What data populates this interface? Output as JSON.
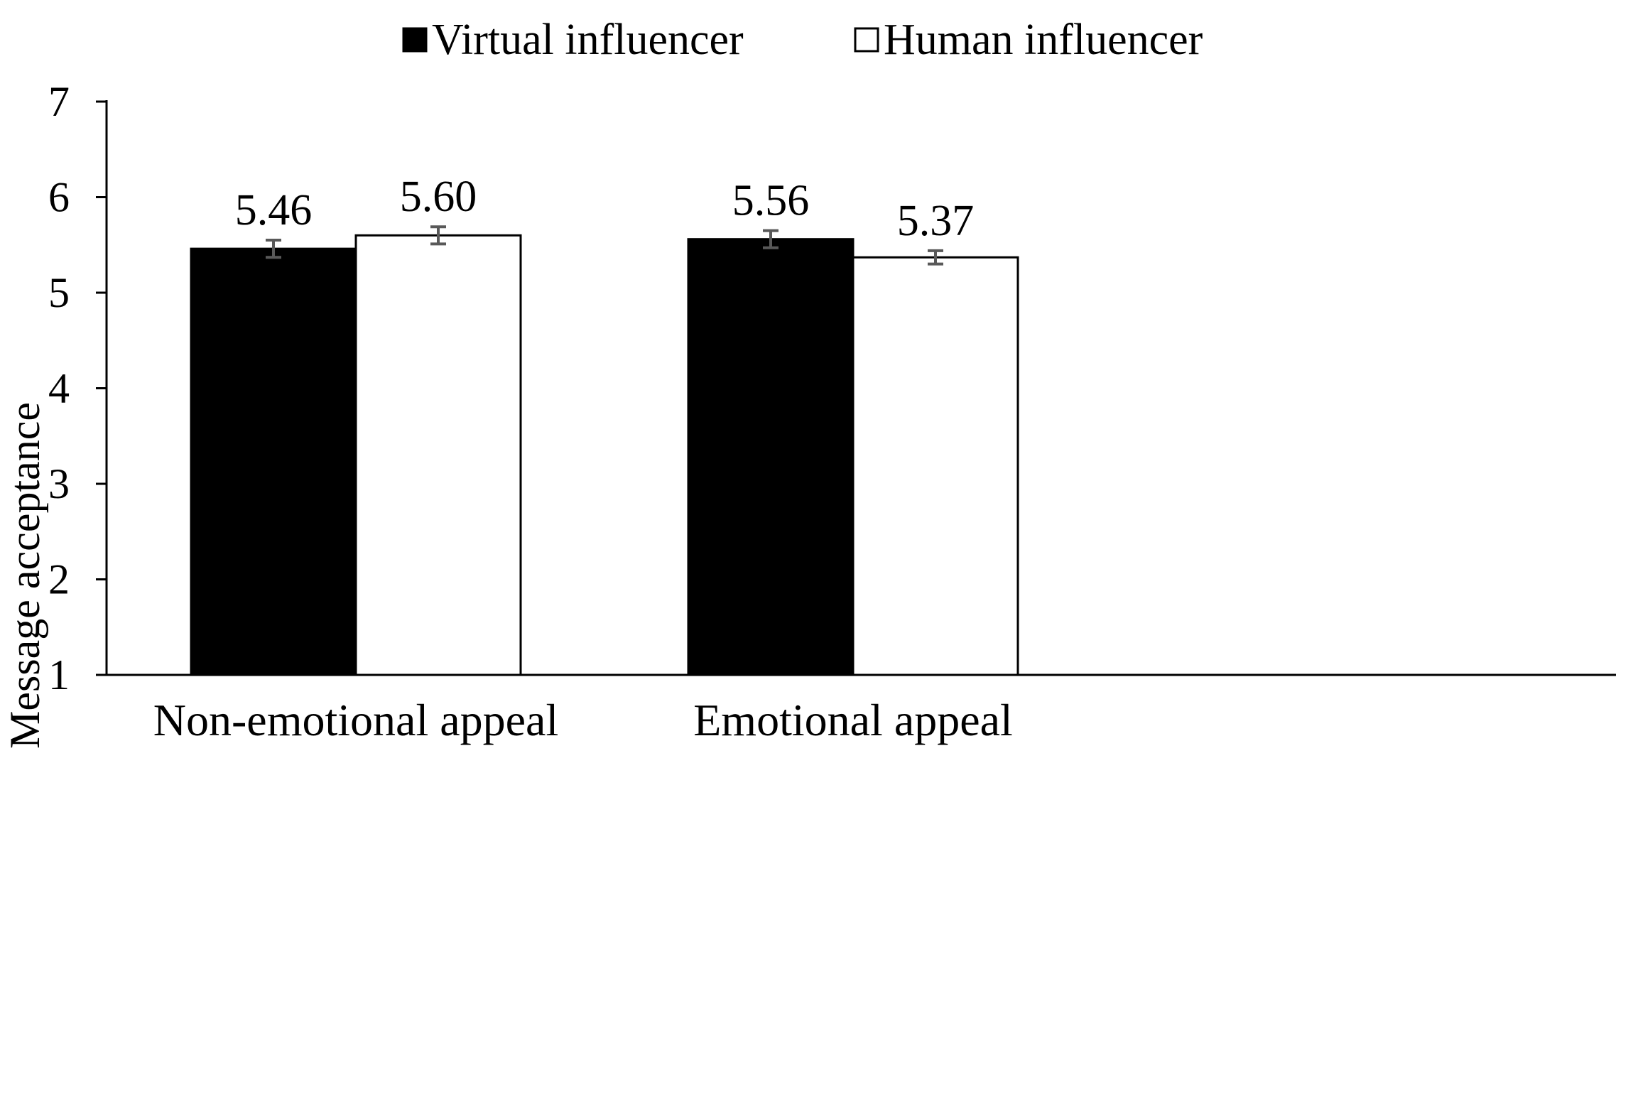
{
  "chart_data": {
    "type": "bar",
    "title": "",
    "xlabel": "",
    "ylabel": "Message acceptance",
    "ylim": [
      1,
      7
    ],
    "yticks": [
      1,
      2,
      3,
      4,
      5,
      6,
      7
    ],
    "categories": [
      "Non-emotional appeal",
      "Emotional appeal"
    ],
    "series": [
      {
        "name": "Virtual influencer",
        "color": "#000000",
        "values": [
          5.46,
          5.56
        ],
        "labels": [
          "5.46",
          "5.56"
        ],
        "error": [
          0.09,
          0.09
        ]
      },
      {
        "name": "Human influencer",
        "color": "#ffffff",
        "values": [
          5.6,
          5.37
        ],
        "labels": [
          "5.60",
          "5.37"
        ],
        "error": [
          0.09,
          0.07
        ]
      }
    ],
    "legend": "top-center",
    "grid": false,
    "error_bar_color": "#595959"
  }
}
